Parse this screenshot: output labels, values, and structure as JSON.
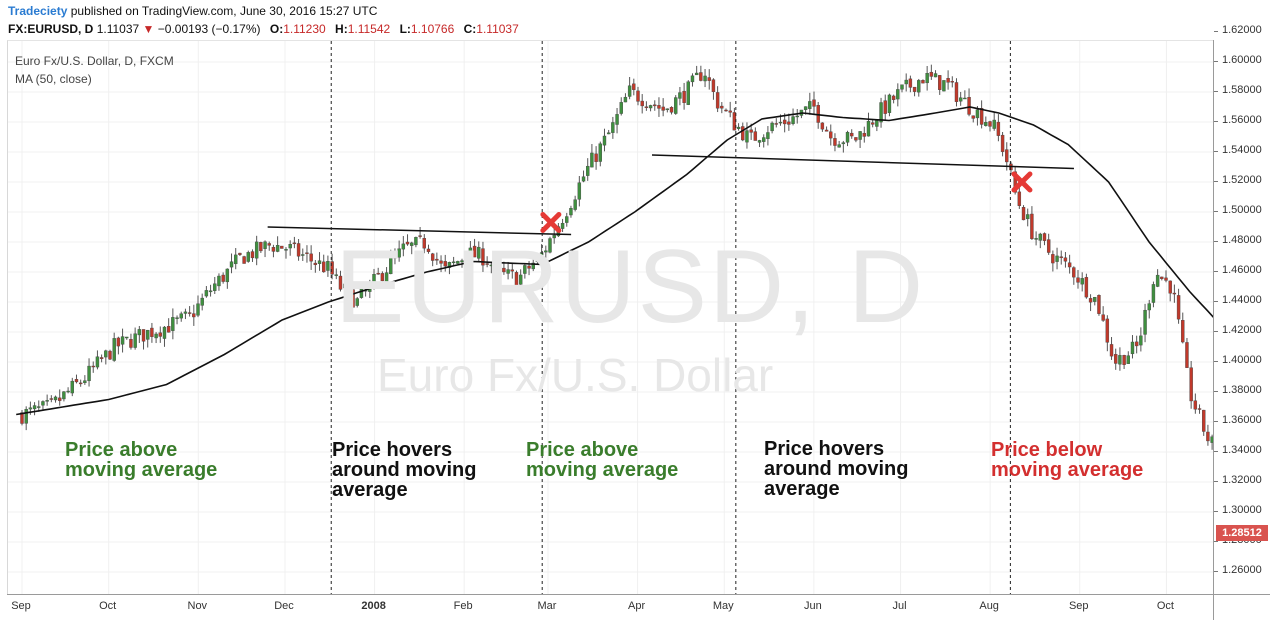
{
  "header": {
    "publisher": "Tradeciety",
    "published_text": "published on TradingView.com, June 30, 2016 15:27 UTC",
    "symbol": "FX:EURUSD, D",
    "last_price": "1.11037",
    "change": "−0.00193 (−0.17%)",
    "open_label": "O:",
    "open_value": "1.11230",
    "high_label": "H:",
    "high_value": "1.11542",
    "low_label": "L:",
    "low_value": "1.10766",
    "close_label": "C:",
    "close_value": "1.11037"
  },
  "legend": {
    "instrument": "Euro Fx/U.S. Dollar, D, FXCM",
    "indicator": "MA (50, close)"
  },
  "watermark": {
    "symbol": "EURUSD, D",
    "name": "Euro Fx/U.S. Dollar"
  },
  "price_badge": "1.28512",
  "annotations": [
    {
      "text": "Price above\nmoving average",
      "color": "#3a7d2c"
    },
    {
      "text": "Price hovers\naround moving\naverage",
      "color": "#111111"
    },
    {
      "text": "Price above\nmoving average",
      "color": "#3a7d2c"
    },
    {
      "text": "Price hovers\naround moving\naverage",
      "color": "#111111"
    },
    {
      "text": "Price below\nmoving average",
      "color": "#d32f2f"
    }
  ],
  "colors": {
    "up": "#3f8f3f",
    "down": "#c0392b",
    "ma": "#111111",
    "cross": "#e53935"
  },
  "chart_data": {
    "type": "candlestick",
    "title": "Euro Fx/U.S. Dollar, D, FXCM",
    "ylim": [
      1.25,
      1.625
    ],
    "y_ticks": [
      "1.26000",
      "1.28000",
      "1.30000",
      "1.32000",
      "1.34000",
      "1.36000",
      "1.38000",
      "1.40000",
      "1.42000",
      "1.44000",
      "1.46000",
      "1.48000",
      "1.50000",
      "1.52000",
      "1.54000",
      "1.56000",
      "1.58000",
      "1.60000",
      "1.62000"
    ],
    "x_ticks": [
      {
        "label": "Sep",
        "day": 0,
        "bold": false
      },
      {
        "label": "Oct",
        "day": 30,
        "bold": false
      },
      {
        "label": "Nov",
        "day": 61,
        "bold": false
      },
      {
        "label": "Dec",
        "day": 91,
        "bold": false
      },
      {
        "label": "2008",
        "day": 122,
        "bold": true
      },
      {
        "label": "Feb",
        "day": 153,
        "bold": false
      },
      {
        "label": "Mar",
        "day": 182,
        "bold": false
      },
      {
        "label": "Apr",
        "day": 213,
        "bold": false
      },
      {
        "label": "May",
        "day": 243,
        "bold": false
      },
      {
        "label": "Jun",
        "day": 274,
        "bold": false
      },
      {
        "label": "Jul",
        "day": 304,
        "bold": false
      },
      {
        "label": "Aug",
        "day": 335,
        "bold": false
      },
      {
        "label": "Sep",
        "day": 366,
        "bold": false
      },
      {
        "label": "Oct",
        "day": 396,
        "bold": false
      }
    ],
    "x_end_day": 418,
    "price_path": [
      [
        -2,
        1.364
      ],
      [
        10,
        1.37
      ],
      [
        22,
        1.39
      ],
      [
        32,
        1.41
      ],
      [
        44,
        1.42
      ],
      [
        52,
        1.425
      ],
      [
        58,
        1.43
      ],
      [
        66,
        1.45
      ],
      [
        76,
        1.47
      ],
      [
        86,
        1.478
      ],
      [
        92,
        1.476
      ],
      [
        98,
        1.47
      ],
      [
        106,
        1.462
      ],
      [
        110,
        1.45
      ],
      [
        116,
        1.44
      ],
      [
        124,
        1.458
      ],
      [
        132,
        1.475
      ],
      [
        140,
        1.48
      ],
      [
        146,
        1.46
      ],
      [
        154,
        1.472
      ],
      [
        160,
        1.47
      ],
      [
        166,
        1.458
      ],
      [
        172,
        1.456
      ],
      [
        180,
        1.472
      ],
      [
        188,
        1.5
      ],
      [
        196,
        1.53
      ],
      [
        204,
        1.555
      ],
      [
        210,
        1.58
      ],
      [
        216,
        1.575
      ],
      [
        222,
        1.568
      ],
      [
        230,
        1.58
      ],
      [
        236,
        1.595
      ],
      [
        240,
        1.575
      ],
      [
        246,
        1.56
      ],
      [
        252,
        1.548
      ],
      [
        258,
        1.556
      ],
      [
        266,
        1.562
      ],
      [
        274,
        1.57
      ],
      [
        280,
        1.55
      ],
      [
        288,
        1.548
      ],
      [
        296,
        1.565
      ],
      [
        304,
        1.58
      ],
      [
        312,
        1.59
      ],
      [
        320,
        1.585
      ],
      [
        328,
        1.57
      ],
      [
        336,
        1.558
      ],
      [
        340,
        1.54
      ],
      [
        344,
        1.51
      ],
      [
        350,
        1.485
      ],
      [
        356,
        1.472
      ],
      [
        364,
        1.46
      ],
      [
        372,
        1.44
      ],
      [
        378,
        1.4
      ],
      [
        386,
        1.41
      ],
      [
        392,
        1.46
      ],
      [
        398,
        1.45
      ],
      [
        404,
        1.38
      ],
      [
        410,
        1.35
      ],
      [
        414,
        1.34
      ],
      [
        418,
        1.31
      ]
    ],
    "ma50": [
      [
        -2,
        1.365
      ],
      [
        30,
        1.375
      ],
      [
        50,
        1.385
      ],
      [
        70,
        1.405
      ],
      [
        90,
        1.428
      ],
      [
        106,
        1.44
      ],
      [
        122,
        1.45
      ],
      [
        140,
        1.46
      ],
      [
        156,
        1.467
      ],
      [
        168,
        1.466
      ],
      [
        180,
        1.465
      ],
      [
        196,
        1.48
      ],
      [
        212,
        1.5
      ],
      [
        230,
        1.525
      ],
      [
        244,
        1.548
      ],
      [
        256,
        1.562
      ],
      [
        270,
        1.566
      ],
      [
        284,
        1.563
      ],
      [
        300,
        1.561
      ],
      [
        316,
        1.566
      ],
      [
        328,
        1.57
      ],
      [
        338,
        1.566
      ],
      [
        350,
        1.558
      ],
      [
        362,
        1.545
      ],
      [
        376,
        1.52
      ],
      [
        390,
        1.48
      ],
      [
        404,
        1.447
      ],
      [
        418,
        1.418
      ]
    ],
    "lines": [
      {
        "from": [
          85,
          1.49
        ],
        "to": [
          190,
          1.485
        ]
      },
      {
        "from": [
          218,
          1.538
        ],
        "to": [
          364,
          1.529
        ]
      }
    ],
    "vertical_dividers": [
      107,
      180,
      247,
      342
    ],
    "cross_markers": [
      [
        183,
        1.493
      ],
      [
        346,
        1.52
      ]
    ]
  }
}
